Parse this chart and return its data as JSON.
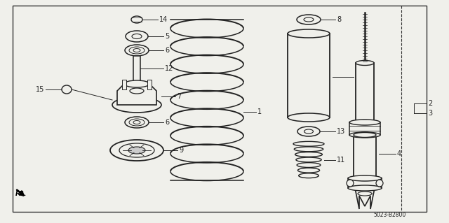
{
  "bg_color": "#f0f0eb",
  "border_color": "#333333",
  "line_color": "#222222",
  "part_number": "5023-B2800",
  "figsize": [
    6.4,
    3.19
  ],
  "dpi": 100
}
